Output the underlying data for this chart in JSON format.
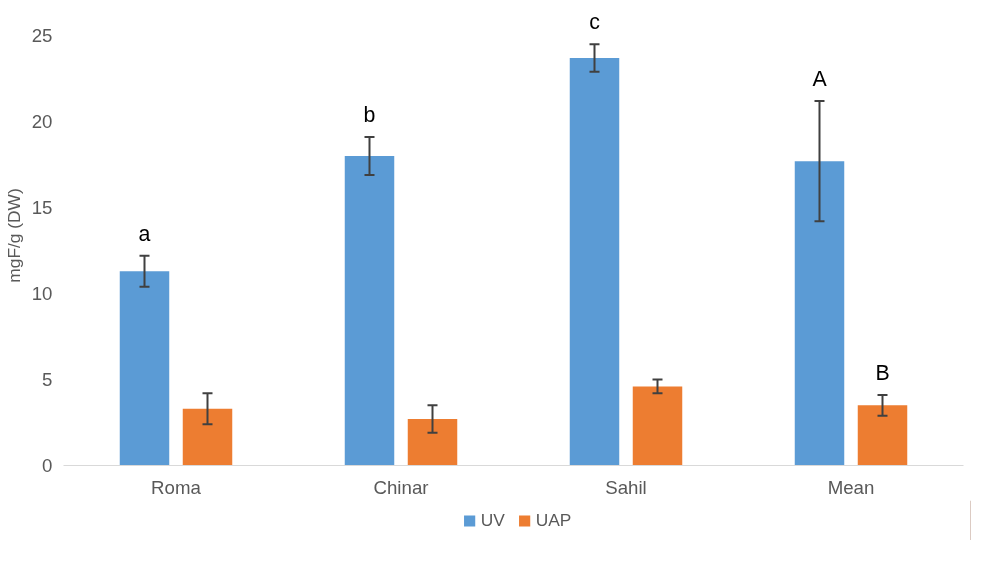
{
  "chart_data": {
    "type": "bar",
    "ylabel": "mgF/g (DW)",
    "categories": [
      "Roma",
      "Chinar",
      "Sahil",
      "Mean"
    ],
    "series": [
      {
        "name": "UV",
        "color": "#5b9bd5",
        "values": [
          11.3,
          18.0,
          23.7,
          17.7
        ],
        "errors": [
          0.9,
          1.1,
          0.8,
          3.5
        ]
      },
      {
        "name": "UAP",
        "color": "#ed7d31",
        "values": [
          3.3,
          2.7,
          4.6,
          3.5
        ],
        "errors": [
          0.9,
          0.8,
          0.4,
          0.6
        ]
      }
    ],
    "ylim": [
      0,
      25
    ],
    "yticks": [
      0,
      5,
      10,
      15,
      20,
      25
    ],
    "grid": false,
    "legend": "bottom",
    "annotations": [
      "a",
      "b",
      "c",
      "A",
      "B"
    ]
  }
}
